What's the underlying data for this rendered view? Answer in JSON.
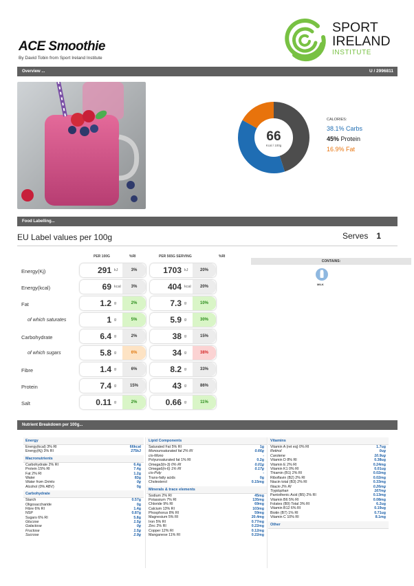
{
  "header": {
    "title": "ACE Smoothie",
    "byline": "By David Tobin from Sport Ireland Institute",
    "logo": {
      "line1": "SPORT",
      "line2": "IRELAND",
      "line3": "INSTITUTE"
    }
  },
  "overview_bar": {
    "label": "Overview ...",
    "id": "U / 2996811"
  },
  "donut": {
    "value": "66",
    "unit": "Kcal / 100g",
    "calories_label": "CALORIES:",
    "carbs": {
      "pct": "38.1%",
      "label": "Carbs",
      "fraction": 0.381,
      "color": "#1f6db3"
    },
    "protein": {
      "pct": "45%",
      "label": "Protein",
      "fraction": 0.45,
      "color": "#4d4d4d"
    },
    "fat": {
      "pct": "16.9%",
      "label": "Fat",
      "fraction": 0.169,
      "color": "#e8730c"
    }
  },
  "food_labelling_bar": {
    "label": "Food Labelling..."
  },
  "eu_label": "EU Label values per 100g",
  "serves": {
    "label": "Serves",
    "value": "1"
  },
  "columns": {
    "per100": "PER 100G",
    "ri1": "%RI",
    "perserv": "PER 565G SERVING",
    "ri2": "%RI"
  },
  "nutrients": [
    {
      "label": "Energy(Kj)",
      "v1": "291",
      "u1": "kJ",
      "r1": "3%",
      "v2": "1703",
      "u2": "kJ",
      "r2": "20%",
      "c1": "#ececec",
      "c2": "#ececec",
      "t1": "#333",
      "t2": "#333",
      "indent": false
    },
    {
      "label": "Energy(kcal)",
      "v1": "69",
      "u1": "kcal",
      "r1": "3%",
      "v2": "404",
      "u2": "kcal",
      "r2": "20%",
      "c1": "#ececec",
      "c2": "#ececec",
      "t1": "#333",
      "t2": "#333",
      "indent": false
    },
    {
      "label": "Fat",
      "v1": "1.2",
      "u1": "g",
      "r1": "2%",
      "v2": "7.3",
      "u2": "g",
      "r2": "10%",
      "c1": "#d9f5c7",
      "c2": "#d9f5c7",
      "t1": "#2a8c1a",
      "t2": "#2a8c1a",
      "indent": false
    },
    {
      "label": "of which saturates",
      "v1": "1",
      "u1": "g",
      "r1": "5%",
      "v2": "5.9",
      "u2": "g",
      "r2": "30%",
      "c1": "#d9f5c7",
      "c2": "#d9f5c7",
      "t1": "#2a8c1a",
      "t2": "#2a8c1a",
      "indent": true
    },
    {
      "label": "Carbohydrate",
      "v1": "6.4",
      "u1": "g",
      "r1": "2%",
      "v2": "38",
      "u2": "g",
      "r2": "15%",
      "c1": "#ececec",
      "c2": "#ececec",
      "t1": "#333",
      "t2": "#333",
      "indent": false
    },
    {
      "label": "of which sugars",
      "v1": "5.8",
      "u1": "g",
      "r1": "6%",
      "v2": "34",
      "u2": "g",
      "r2": "38%",
      "c1": "#fde3c4",
      "c2": "#fbd3d3",
      "t1": "#e07a10",
      "t2": "#d42a2a",
      "indent": true
    },
    {
      "label": "Fibre",
      "v1": "1.4",
      "u1": "g",
      "r1": "6%",
      "v2": "8.2",
      "u2": "g",
      "r2": "33%",
      "c1": "#ececec",
      "c2": "#ececec",
      "t1": "#333",
      "t2": "#333",
      "indent": false
    },
    {
      "label": "Protein",
      "v1": "7.4",
      "u1": "g",
      "r1": "15%",
      "v2": "43",
      "u2": "g",
      "r2": "86%",
      "c1": "#ececec",
      "c2": "#ececec",
      "t1": "#333",
      "t2": "#333",
      "indent": false
    },
    {
      "label": "Salt",
      "v1": "0.11",
      "u1": "g",
      "r1": "2%",
      "v2": "0.66",
      "u2": "g",
      "r2": "11%",
      "c1": "#d9f5c7",
      "c2": "#d9f5c7",
      "t1": "#2a8c1a",
      "t2": "#2a8c1a",
      "indent": false
    }
  ],
  "contains": {
    "label": "CONTAINS:",
    "allergen": "MILK"
  },
  "breakdown_bar": {
    "label": "Nutrient Breakdown per 100g..."
  },
  "breakdown": {
    "col1": [
      {
        "type": "hd",
        "label": "Energy"
      },
      {
        "label": "Energy(kcal) 3% RI",
        "v": "66kcal"
      },
      {
        "label": "Energy(Kj) 3% RI",
        "v": "275kJ"
      },
      {
        "type": "sec",
        "label": "Macronutrients"
      },
      {
        "label": "Carbohydrate 2% RI",
        "v": "6.4g"
      },
      {
        "label": "Protein 15% RI",
        "v": "7.4g"
      },
      {
        "label": "Fat 2% RI",
        "v": "1.2g"
      },
      {
        "label": "Water",
        "v": "83g"
      },
      {
        "label": "Water from Drinks",
        "v": "0g",
        "it": true
      },
      {
        "label": "Alcohol (0% ABV)",
        "v": "0g"
      },
      {
        "type": "sec",
        "label": "Carbohydrate"
      },
      {
        "label": "Starch",
        "v": "0.57g"
      },
      {
        "label": "Oligosaccharide",
        "v": "0g"
      },
      {
        "label": "Fibre 6% RI",
        "v": "1.4g"
      },
      {
        "label": "NSP",
        "v": "0.87g"
      },
      {
        "label": "Sugars 6% RI",
        "v": "5.8g"
      },
      {
        "label": "Glucose",
        "v": "1.5g",
        "it": true
      },
      {
        "label": "Galactose",
        "v": "0g",
        "it": true
      },
      {
        "label": "Fructose",
        "v": "1.5g",
        "it": true
      },
      {
        "label": "Sucrose",
        "v": "2.9g",
        "it": true
      }
    ],
    "col2": [
      {
        "type": "hd",
        "label": "Lipid Components"
      },
      {
        "label": "Saturated Fat 5% RI",
        "v": "1g"
      },
      {
        "label": "Monounsaturated fat 2% RI",
        "v": "0.66g",
        "it": true
      },
      {
        "label": "cis-Mono",
        "v": "-",
        "it": true
      },
      {
        "label": "Polyunsaturated fat 1% RI",
        "v": "0.2g"
      },
      {
        "label": "Omega3(n-3) 0% RI",
        "v": "0.01g",
        "it": true
      },
      {
        "label": "Omega6(n-6) 1% RI",
        "v": "0.17g",
        "it": true
      },
      {
        "label": "cis-Poly",
        "v": "-",
        "it": true
      },
      {
        "label": "Trans-fatty acids",
        "v": "0g"
      },
      {
        "label": "Cholesterol",
        "v": "0.15mg"
      },
      {
        "type": "sec",
        "label": "Minerals & trace elements"
      },
      {
        "label": "Sodium 2% RI",
        "v": "45mg"
      },
      {
        "label": "Potassium 7% RI",
        "v": "135mg"
      },
      {
        "label": "Chloride 9% RI",
        "v": "69mg"
      },
      {
        "label": "Calcium 13% RI",
        "v": "103mg"
      },
      {
        "label": "Phosphorus 8% RI",
        "v": "59mg"
      },
      {
        "label": "Magnesium 5% RI",
        "v": "20.4mg"
      },
      {
        "label": "Iron 5% RI",
        "v": "0.77mg"
      },
      {
        "label": "Zinc 2% RI",
        "v": "0.22mg"
      },
      {
        "label": "Copper 12% RI",
        "v": "0.12mg"
      },
      {
        "label": "Manganese 11% RI",
        "v": "0.22mg"
      }
    ],
    "col3": [
      {
        "type": "hd",
        "label": "Vitamins"
      },
      {
        "label": "Vitamin A (ret eq) 0% RI",
        "v": "1.7ug"
      },
      {
        "label": "Retinol",
        "v": "0ug",
        "it": true
      },
      {
        "label": "Carotene",
        "v": "10.9ug",
        "it": true
      },
      {
        "label": "Vitamin D 8% RI",
        "v": "0.38ug"
      },
      {
        "label": "Vitamin E 2% RI",
        "v": "0.24mg"
      },
      {
        "label": "Vitamin K1 0% RI",
        "v": "0.01ug"
      },
      {
        "label": "Thiamin (B1) 2% RI",
        "v": "0.02mg"
      },
      {
        "label": "Riboflavin (B2) 2% RI",
        "v": "0.02mg"
      },
      {
        "label": "Niacin total (B3) 2% RI",
        "v": "0.33mg"
      },
      {
        "label": "Niacin 2% RI",
        "v": "0.26mg",
        "it": true
      },
      {
        "label": "Tryptophan",
        "v": "167mg",
        "it": true
      },
      {
        "label": "Pantothenic Acid (B5) 2% RI",
        "v": "0.13mg"
      },
      {
        "label": "Vitamin B6 5% RI",
        "v": "0.08mg"
      },
      {
        "label": "Folates (B9) Total 3% RI",
        "v": "6.2ug"
      },
      {
        "label": "Vitamin B12 6% RI",
        "v": "0.19ug"
      },
      {
        "label": "Biotin (B7) 1% RI",
        "v": "0.71ug"
      },
      {
        "label": "Vitamin C 10% RI",
        "v": "8.1mg"
      },
      {
        "type": "sec",
        "label": "Other"
      }
    ]
  }
}
